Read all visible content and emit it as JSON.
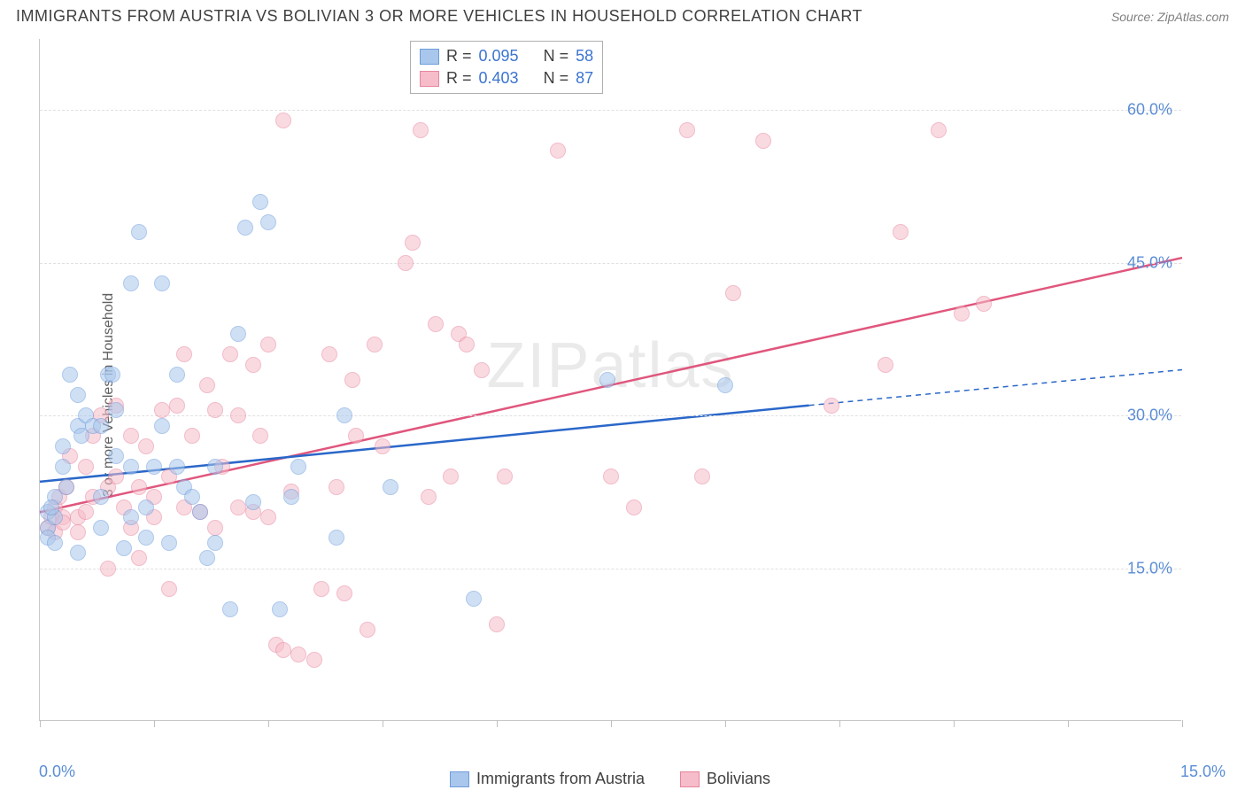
{
  "header": {
    "title": "IMMIGRANTS FROM AUSTRIA VS BOLIVIAN 3 OR MORE VEHICLES IN HOUSEHOLD CORRELATION CHART",
    "source": "Source: ZipAtlas.com"
  },
  "chart": {
    "type": "scatter",
    "watermark": "ZIPatlas",
    "ylabel": "3 or more Vehicles in Household",
    "background_color": "#ffffff",
    "grid_color": "#e0e0e0",
    "axis_color": "#c8c8c8",
    "tick_label_color": "#5b8dd6",
    "xlim": [
      0,
      15
    ],
    "ylim": [
      0,
      67
    ],
    "y_gridlines": [
      15,
      30,
      45,
      60
    ],
    "y_tick_labels": [
      "15.0%",
      "30.0%",
      "45.0%",
      "60.0%"
    ],
    "x_ticks": [
      0,
      1.5,
      3.0,
      4.5,
      6.0,
      7.5,
      9.0,
      10.5,
      12.0,
      13.5,
      15.0
    ],
    "x_tick_labels": {
      "left": "0.0%",
      "right": "15.0%"
    },
    "series": {
      "austria": {
        "label": "Immigrants from Austria",
        "fill": "#a9c7ec",
        "stroke": "#6d9cdc",
        "trend_color": "#2a67c9",
        "trend_width": 2.5,
        "trend": {
          "x1": 0,
          "y1": 23.5,
          "x2": 10.1,
          "y2": 31.0
        },
        "trend_extend": {
          "x1": 10.1,
          "y1": 31.0,
          "x2": 15.0,
          "y2": 34.5
        },
        "points": [
          [
            0.1,
            19
          ],
          [
            0.1,
            20.5
          ],
          [
            0.1,
            18
          ],
          [
            0.2,
            22
          ],
          [
            0.2,
            20
          ],
          [
            0.2,
            17.5
          ],
          [
            0.15,
            21
          ],
          [
            0.3,
            27
          ],
          [
            0.3,
            25
          ],
          [
            0.35,
            23
          ],
          [
            0.4,
            34
          ],
          [
            0.5,
            32
          ],
          [
            0.5,
            29
          ],
          [
            0.55,
            28
          ],
          [
            0.6,
            30
          ],
          [
            0.7,
            29
          ],
          [
            0.8,
            29
          ],
          [
            0.8,
            22
          ],
          [
            0.8,
            19
          ],
          [
            0.9,
            34
          ],
          [
            0.95,
            34
          ],
          [
            1.0,
            26
          ],
          [
            1.1,
            17
          ],
          [
            1.2,
            43
          ],
          [
            1.2,
            25
          ],
          [
            1.2,
            20
          ],
          [
            1.3,
            48
          ],
          [
            1.4,
            21
          ],
          [
            1.4,
            18
          ],
          [
            1.5,
            25
          ],
          [
            1.6,
            43
          ],
          [
            1.7,
            17.5
          ],
          [
            1.8,
            34
          ],
          [
            1.8,
            25
          ],
          [
            1.9,
            23
          ],
          [
            2.0,
            22
          ],
          [
            2.1,
            20.5
          ],
          [
            2.2,
            16
          ],
          [
            2.3,
            17.5
          ],
          [
            2.5,
            11
          ],
          [
            2.6,
            38
          ],
          [
            2.7,
            48.5
          ],
          [
            2.8,
            21.5
          ],
          [
            2.9,
            51
          ],
          [
            3.0,
            49
          ],
          [
            3.15,
            11
          ],
          [
            3.3,
            22
          ],
          [
            3.4,
            25
          ],
          [
            3.9,
            18
          ],
          [
            4.0,
            30
          ],
          [
            4.6,
            23
          ],
          [
            5.7,
            12
          ],
          [
            7.45,
            33.5
          ],
          [
            9.0,
            33
          ],
          [
            0.5,
            16.5
          ],
          [
            1.0,
            30.5
          ],
          [
            1.6,
            29
          ],
          [
            2.3,
            25
          ]
        ]
      },
      "bolivia": {
        "label": "Bolivians",
        "fill": "#f6bcc9",
        "stroke": "#e7859e",
        "trend_color": "#e0567d",
        "trend_width": 2.5,
        "trend": {
          "x1": 0,
          "y1": 20.5,
          "x2": 15.0,
          "y2": 45.5
        },
        "points": [
          [
            0.1,
            19
          ],
          [
            0.15,
            20
          ],
          [
            0.2,
            18.5
          ],
          [
            0.2,
            21
          ],
          [
            0.25,
            22
          ],
          [
            0.3,
            20
          ],
          [
            0.3,
            19.5
          ],
          [
            0.35,
            23
          ],
          [
            0.4,
            26
          ],
          [
            0.5,
            20
          ],
          [
            0.5,
            18.5
          ],
          [
            0.6,
            25
          ],
          [
            0.6,
            20.5
          ],
          [
            0.7,
            28
          ],
          [
            0.7,
            22
          ],
          [
            0.8,
            30
          ],
          [
            0.9,
            23
          ],
          [
            0.9,
            15
          ],
          [
            1.0,
            24
          ],
          [
            1.0,
            31
          ],
          [
            1.1,
            21
          ],
          [
            1.2,
            28
          ],
          [
            1.2,
            19
          ],
          [
            1.3,
            23
          ],
          [
            1.3,
            16
          ],
          [
            1.4,
            27
          ],
          [
            1.5,
            22
          ],
          [
            1.5,
            20
          ],
          [
            1.6,
            30.5
          ],
          [
            1.7,
            24
          ],
          [
            1.7,
            13
          ],
          [
            1.8,
            31
          ],
          [
            1.9,
            21
          ],
          [
            1.9,
            36
          ],
          [
            2.0,
            28
          ],
          [
            2.1,
            20.5
          ],
          [
            2.2,
            33
          ],
          [
            2.3,
            30.5
          ],
          [
            2.3,
            19
          ],
          [
            2.4,
            25
          ],
          [
            2.5,
            36
          ],
          [
            2.6,
            21
          ],
          [
            2.6,
            30
          ],
          [
            2.8,
            20.5
          ],
          [
            2.8,
            35
          ],
          [
            2.9,
            28
          ],
          [
            3.0,
            20
          ],
          [
            3.0,
            37
          ],
          [
            3.1,
            7.5
          ],
          [
            3.2,
            7
          ],
          [
            3.2,
            59
          ],
          [
            3.3,
            22.5
          ],
          [
            3.4,
            6.5
          ],
          [
            3.6,
            6
          ],
          [
            3.7,
            13
          ],
          [
            3.8,
            36
          ],
          [
            3.9,
            23
          ],
          [
            4.0,
            12.5
          ],
          [
            4.1,
            33.5
          ],
          [
            4.15,
            28
          ],
          [
            4.3,
            9
          ],
          [
            4.4,
            37
          ],
          [
            4.5,
            27
          ],
          [
            4.8,
            45
          ],
          [
            4.9,
            47
          ],
          [
            5.0,
            58
          ],
          [
            5.1,
            22
          ],
          [
            5.2,
            39
          ],
          [
            5.4,
            24
          ],
          [
            5.5,
            38
          ],
          [
            5.6,
            37
          ],
          [
            5.8,
            34.5
          ],
          [
            6.0,
            9.5
          ],
          [
            6.1,
            24
          ],
          [
            6.8,
            56
          ],
          [
            7.5,
            24
          ],
          [
            7.8,
            21
          ],
          [
            8.5,
            58
          ],
          [
            8.7,
            24
          ],
          [
            9.1,
            42
          ],
          [
            9.5,
            57
          ],
          [
            10.4,
            31
          ],
          [
            11.1,
            35
          ],
          [
            11.3,
            48
          ],
          [
            11.8,
            58
          ],
          [
            12.1,
            40
          ],
          [
            12.4,
            41
          ]
        ]
      }
    },
    "stat_legend": {
      "rows": [
        {
          "series": "austria",
          "r_label": "R =",
          "r_val": "0.095",
          "n_label": "N =",
          "n_val": "58"
        },
        {
          "series": "bolivia",
          "r_label": "R =",
          "r_val": "0.403",
          "n_label": "N =",
          "n_val": "87"
        }
      ]
    }
  }
}
